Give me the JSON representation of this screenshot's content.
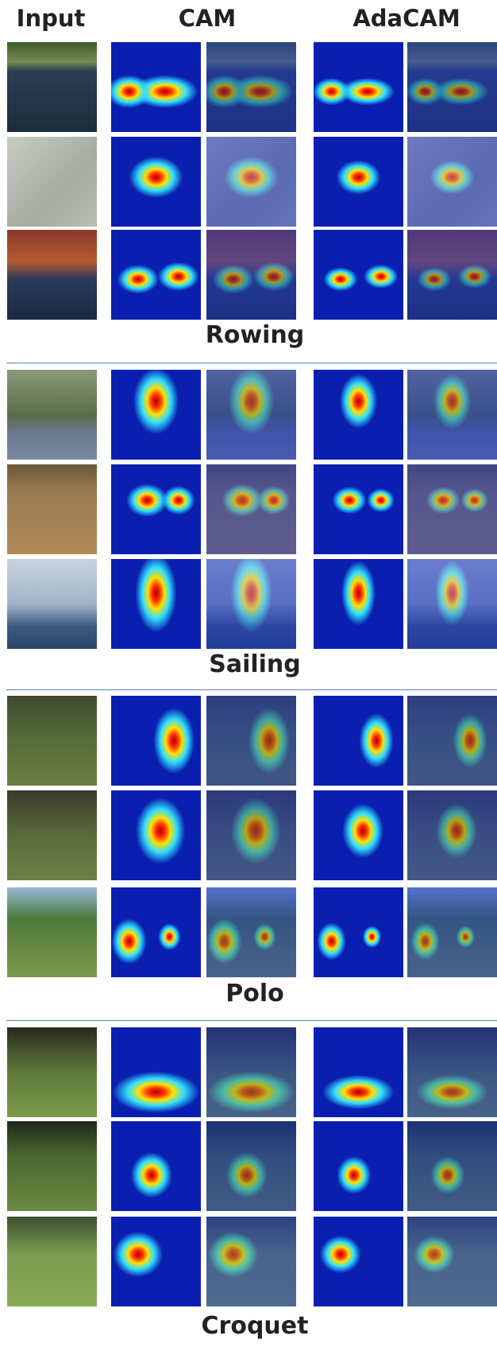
{
  "header": {
    "columns": [
      "Input",
      "CAM",
      "AdaCAM"
    ]
  },
  "groups": [
    {
      "label": "Rowing"
    },
    {
      "label": "Sailing"
    },
    {
      "label": "Polo"
    },
    {
      "label": "Croquet"
    }
  ]
}
